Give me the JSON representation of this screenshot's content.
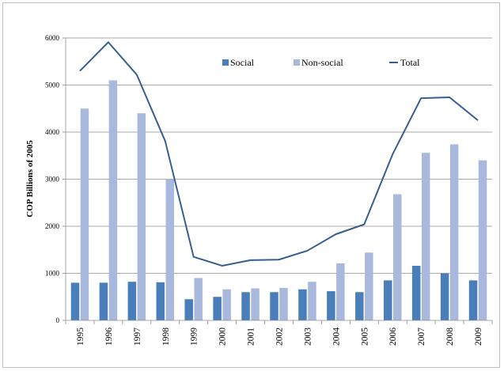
{
  "chart_data": {
    "type": "bar",
    "categories": [
      "1995",
      "1996",
      "1997",
      "1998",
      "1999",
      "2000",
      "2001",
      "2002",
      "2003",
      "2004",
      "2005",
      "2006",
      "2007",
      "2008",
      "2009"
    ],
    "series": [
      {
        "name": "Social",
        "type": "bar",
        "color": "#4a7ebb",
        "values": [
          800,
          800,
          820,
          810,
          450,
          500,
          600,
          600,
          660,
          620,
          600,
          850,
          1160,
          1000,
          850
        ]
      },
      {
        "name": "Non-social",
        "type": "bar",
        "color": "#a9b9dd",
        "values": [
          4500,
          5100,
          4400,
          3000,
          900,
          660,
          680,
          690,
          820,
          1210,
          1440,
          2680,
          3560,
          3740,
          3400
        ]
      },
      {
        "name": "Total",
        "type": "line",
        "color": "#365f91",
        "values": [
          5300,
          5910,
          5220,
          3810,
          1350,
          1160,
          1280,
          1290,
          1480,
          1830,
          2040,
          3530,
          4720,
          4740,
          4250
        ]
      }
    ],
    "ylabel": "COP Billions of 2005",
    "xlabel": "",
    "ylim": [
      0,
      6000
    ],
    "yticks": [
      0,
      1000,
      2000,
      3000,
      4000,
      5000,
      6000
    ],
    "grid": true,
    "legend": "top-right"
  }
}
